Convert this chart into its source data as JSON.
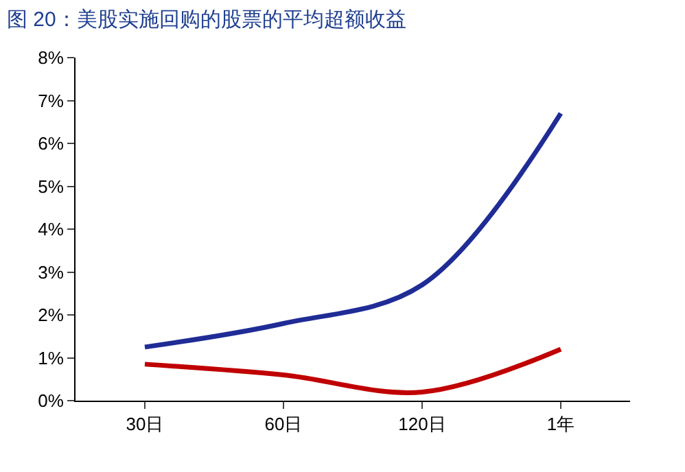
{
  "chart_data": {
    "type": "line",
    "title": "图 20：美股实施回购的股票的平均超额收益",
    "categories": [
      "30日",
      "60日",
      "120日",
      "1年"
    ],
    "series": [
      {
        "color": "#1f2c96",
        "values": [
          1.25,
          1.8,
          2.7,
          6.7
        ]
      },
      {
        "color": "#c00000",
        "values": [
          0.85,
          0.6,
          0.2,
          1.2
        ]
      }
    ],
    "ylim": [
      0,
      8
    ],
    "yticks": [
      {
        "value": 0,
        "label": "0%"
      },
      {
        "value": 1,
        "label": "1%"
      },
      {
        "value": 2,
        "label": "2%"
      },
      {
        "value": 3,
        "label": "3%"
      },
      {
        "value": 4,
        "label": "4%"
      },
      {
        "value": 5,
        "label": "5%"
      },
      {
        "value": 6,
        "label": "6%"
      },
      {
        "value": 7,
        "label": "7%"
      },
      {
        "value": 8,
        "label": "8%"
      }
    ],
    "grid": false,
    "marker": "none",
    "line_style": "solid"
  }
}
